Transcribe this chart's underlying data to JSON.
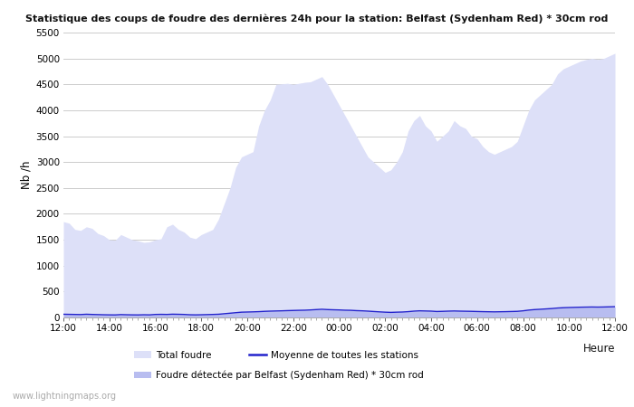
{
  "title": "Statistique des coups de foudre des dernières 24h pour la station: Belfast (Sydenham Red) * 30cm rod",
  "ylabel": "Nb /h",
  "xlabel_right": "Heure",
  "ylim": [
    0,
    5500
  ],
  "yticks": [
    0,
    500,
    1000,
    1500,
    2000,
    2500,
    3000,
    3500,
    4000,
    4500,
    5000,
    5500
  ],
  "xtick_labels": [
    "12:00",
    "14:00",
    "16:00",
    "18:00",
    "20:00",
    "22:00",
    "00:00",
    "02:00",
    "04:00",
    "06:00",
    "08:00",
    "10:00",
    "12:00"
  ],
  "bg_color": "#ffffff",
  "plot_bg_color": "#ffffff",
  "area_total_color": "#dde0f8",
  "area_station_color": "#b8bdf0",
  "line_color": "#2222cc",
  "watermark": "www.lightningmaps.org",
  "legend_total": "Total foudre",
  "legend_station": "Foudre détectée par Belfast (Sydenham Red) * 30cm rod",
  "legend_mean": "Moyenne de toutes les stations",
  "total_foudre": [
    1850,
    1820,
    1700,
    1680,
    1750,
    1720,
    1620,
    1580,
    1500,
    1490,
    1600,
    1550,
    1500,
    1480,
    1450,
    1460,
    1500,
    1520,
    1750,
    1800,
    1700,
    1650,
    1550,
    1520,
    1600,
    1650,
    1700,
    1900,
    2200,
    2500,
    2900,
    3100,
    3150,
    3200,
    3700,
    4000,
    4200,
    4500,
    4510,
    4520,
    4500,
    4520,
    4540,
    4550,
    4600,
    4650,
    4500,
    4300,
    4100,
    3900,
    3700,
    3500,
    3300,
    3100,
    3000,
    2900,
    2800,
    2850,
    3000,
    3200,
    3600,
    3800,
    3900,
    3700,
    3600,
    3400,
    3500,
    3600,
    3800,
    3700,
    3650,
    3500,
    3450,
    3300,
    3200,
    3150,
    3200,
    3250,
    3300,
    3400,
    3700,
    4000,
    4200,
    4300,
    4400,
    4500,
    4700,
    4800,
    4850,
    4900,
    4950,
    4980,
    5000,
    4980,
    5000,
    5050,
    5100
  ],
  "station_foudre": [
    60,
    58,
    55,
    53,
    60,
    55,
    50,
    48,
    45,
    44,
    50,
    48,
    45,
    44,
    50,
    48,
    55,
    58,
    55,
    60,
    58,
    55,
    50,
    48,
    50,
    52,
    55,
    60,
    70,
    80,
    90,
    100,
    102,
    105,
    110,
    115,
    118,
    120,
    125,
    130,
    132,
    135,
    137,
    140,
    148,
    152,
    148,
    145,
    142,
    138,
    135,
    130,
    125,
    118,
    112,
    105,
    100,
    95,
    98,
    102,
    110,
    118,
    125,
    122,
    118,
    112,
    115,
    118,
    122,
    120,
    118,
    115,
    112,
    110,
    108,
    105,
    108,
    110,
    112,
    115,
    125,
    138,
    148,
    155,
    162,
    168,
    178,
    185,
    188,
    192,
    195,
    196,
    198,
    196,
    198,
    200,
    202
  ],
  "mean_line": [
    62,
    60,
    58,
    56,
    62,
    58,
    55,
    52,
    50,
    49,
    55,
    52,
    50,
    49,
    52,
    50,
    58,
    60,
    58,
    63,
    61,
    58,
    52,
    50,
    52,
    55,
    58,
    62,
    72,
    82,
    92,
    102,
    105,
    108,
    112,
    118,
    122,
    125,
    128,
    132,
    135,
    138,
    140,
    145,
    152,
    158,
    152,
    148,
    145,
    140,
    138,
    132,
    128,
    122,
    115,
    108,
    102,
    98,
    102,
    105,
    112,
    122,
    128,
    125,
    122,
    115,
    118,
    122,
    125,
    122,
    120,
    118,
    115,
    112,
    110,
    108,
    110,
    112,
    115,
    118,
    128,
    142,
    152,
    158,
    165,
    172,
    182,
    188,
    192,
    195,
    198,
    200,
    202,
    200,
    202,
    205,
    208
  ]
}
